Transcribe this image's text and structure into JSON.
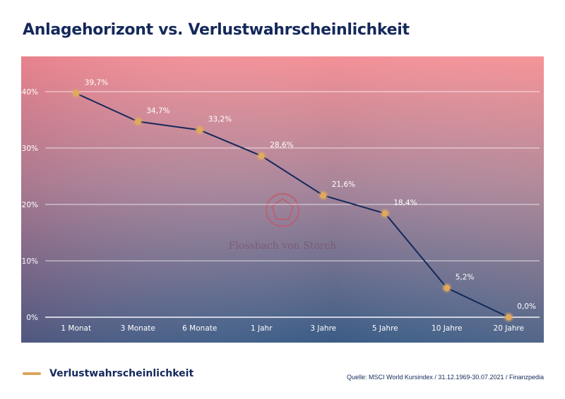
{
  "title": "Anlagehorizont vs. Verlustwahrscheinlichkeit",
  "watermark": "Flossbach von Storch",
  "legend": {
    "label": "Verlustwahrscheinlichkeit",
    "color": "#d9a55c"
  },
  "source": "Quelle: MSCI World Kursindex / 31.12.1969-30.07.2021 / Finanzpedia",
  "colors": {
    "line": "#14285a",
    "marker": "#e0aa5e",
    "gradient_top": "#f49096",
    "gradient_bottom": "#3a5c86",
    "title": "#14285a"
  },
  "chart_data": {
    "type": "line",
    "categories": [
      "1 Monat",
      "3 Monate",
      "6 Monate",
      "1 Jahr",
      "3 Jahre",
      "5 Jahre",
      "10 Jahre",
      "20 Jahre"
    ],
    "series": [
      {
        "name": "Verlustwahrscheinlichkeit",
        "values": [
          39.7,
          34.7,
          33.2,
          28.6,
          21.6,
          18.4,
          5.2,
          0.0
        ],
        "labels": [
          "39,7%",
          "34,7%",
          "33,2%",
          "28,6%",
          "21,6%",
          "18,4%",
          "5,2%",
          "0,0%"
        ]
      }
    ],
    "title": "Anlagehorizont vs. Verlustwahrscheinlichkeit",
    "xlabel": "",
    "ylabel": "",
    "ylim": [
      0,
      40
    ],
    "yticks": [
      0,
      10,
      20,
      30,
      40
    ],
    "ytick_labels": [
      "0%",
      "10%",
      "20%",
      "30%",
      "40%"
    ],
    "grid": true,
    "legend_position": "bottom-left"
  }
}
